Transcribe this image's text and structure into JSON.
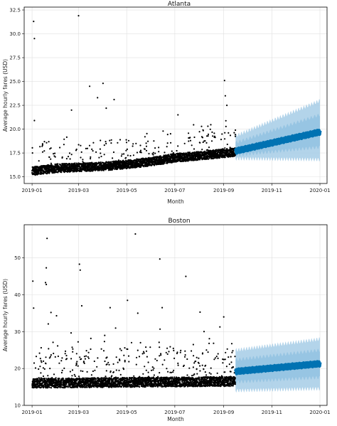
{
  "chart_data": [
    {
      "type": "scatter",
      "title": "Atlanta",
      "xlabel": "Month",
      "ylabel": "Average hourly fares (USD)",
      "x_ticks": [
        "2019-01",
        "2019-03",
        "2019-05",
        "2019-07",
        "2019-09",
        "2019-11",
        "2020-01"
      ],
      "xlim": [
        "2018-12-22",
        "2020-01-10"
      ],
      "y_ticks": [
        "15.0",
        "17.5",
        "20.0",
        "22.5",
        "25.0",
        "27.5",
        "30.0",
        "32.5"
      ],
      "ylim": [
        14.3,
        32.8
      ],
      "grid": true,
      "observed": {
        "start": "2019-01-01",
        "end": "2019-09-15",
        "trend": [
          [
            "2019-01-01",
            15.6
          ],
          [
            "2019-02-01",
            15.9
          ],
          [
            "2019-03-01",
            16.0
          ],
          [
            "2019-04-01",
            16.1
          ],
          [
            "2019-05-01",
            16.3
          ],
          [
            "2019-06-01",
            16.6
          ],
          [
            "2019-07-01",
            17.0
          ],
          [
            "2019-08-01",
            17.2
          ],
          [
            "2019-09-15",
            17.6
          ]
        ],
        "outliers": [
          [
            "2019-01-03",
            31.3
          ],
          [
            "2019-01-04",
            29.5
          ],
          [
            "2019-03-01",
            31.9
          ],
          [
            "2019-03-15",
            24.5
          ],
          [
            "2019-04-01",
            24.8
          ],
          [
            "2019-03-25",
            23.3
          ],
          [
            "2019-04-15",
            23.1
          ],
          [
            "2019-02-20",
            22.0
          ],
          [
            "2019-04-05",
            22.2
          ],
          [
            "2019-09-02",
            25.1
          ],
          [
            "2019-09-03",
            23.5
          ],
          [
            "2019-09-05",
            22.5
          ],
          [
            "2019-07-05",
            21.5
          ],
          [
            "2019-01-04",
            20.9
          ]
        ]
      },
      "forecast": {
        "start": "2019-09-16",
        "end": "2020-01-01",
        "trend": [
          [
            "2019-09-16",
            17.7
          ],
          [
            "2020-01-01",
            19.7
          ]
        ],
        "uncertainty_upper": [
          [
            "2019-09-16",
            19.3
          ],
          [
            "2020-01-01",
            23.0
          ]
        ],
        "uncertainty_lower": [
          [
            "2019-09-16",
            16.9
          ],
          [
            "2020-01-01",
            16.8
          ]
        ]
      },
      "colors": {
        "points": "#000000",
        "forecast": "#0072b2",
        "interval": "#a6cde6",
        "grid": "#e0e0e0"
      }
    },
    {
      "type": "scatter",
      "title": "Boston",
      "xlabel": "Month",
      "ylabel": "Average hourly fares (USD)",
      "x_ticks": [
        "2019-01",
        "2019-03",
        "2019-05",
        "2019-07",
        "2019-09",
        "2019-11",
        "2020-01"
      ],
      "xlim": [
        "2018-12-22",
        "2020-01-10"
      ],
      "y_ticks": [
        "10",
        "20",
        "30",
        "40",
        "50"
      ],
      "ylim": [
        10,
        59
      ],
      "grid": true,
      "observed": {
        "start": "2019-01-01",
        "end": "2019-09-15",
        "trend": [
          [
            "2019-01-01",
            16.0
          ],
          [
            "2019-09-15",
            16.5
          ]
        ],
        "outliers": [
          [
            "2019-01-20",
            55.3
          ],
          [
            "2019-05-12",
            56.5
          ],
          [
            "2019-01-19",
            47.3
          ],
          [
            "2019-03-02",
            48.3
          ],
          [
            "2019-03-03",
            46.7
          ],
          [
            "2019-06-12",
            49.7
          ],
          [
            "2019-01-02",
            43.7
          ],
          [
            "2019-01-18",
            43.3
          ],
          [
            "2019-01-19",
            42.8
          ],
          [
            "2019-07-15",
            45.0
          ],
          [
            "2019-01-03",
            36.4
          ],
          [
            "2019-03-05",
            37.0
          ],
          [
            "2019-04-10",
            36.5
          ],
          [
            "2019-06-15",
            36.5
          ],
          [
            "2019-05-02",
            38.5
          ],
          [
            "2019-01-25",
            35.2
          ],
          [
            "2019-02-01",
            34.3
          ],
          [
            "2019-08-02",
            35.3
          ],
          [
            "2019-09-01",
            34.0
          ],
          [
            "2019-05-15",
            35.0
          ]
        ]
      },
      "forecast": {
        "start": "2019-09-16",
        "end": "2020-01-01",
        "trend": [
          [
            "2019-09-16",
            19.2
          ],
          [
            "2020-01-01",
            21.3
          ]
        ],
        "uncertainty_upper": [
          [
            "2019-09-16",
            25.0
          ],
          [
            "2020-01-01",
            28.0
          ]
        ],
        "uncertainty_lower": [
          [
            "2019-09-16",
            14.0
          ],
          [
            "2020-01-01",
            14.5
          ]
        ]
      },
      "colors": {
        "points": "#000000",
        "forecast": "#0072b2",
        "interval": "#a6cde6",
        "grid": "#e0e0e0"
      }
    }
  ]
}
